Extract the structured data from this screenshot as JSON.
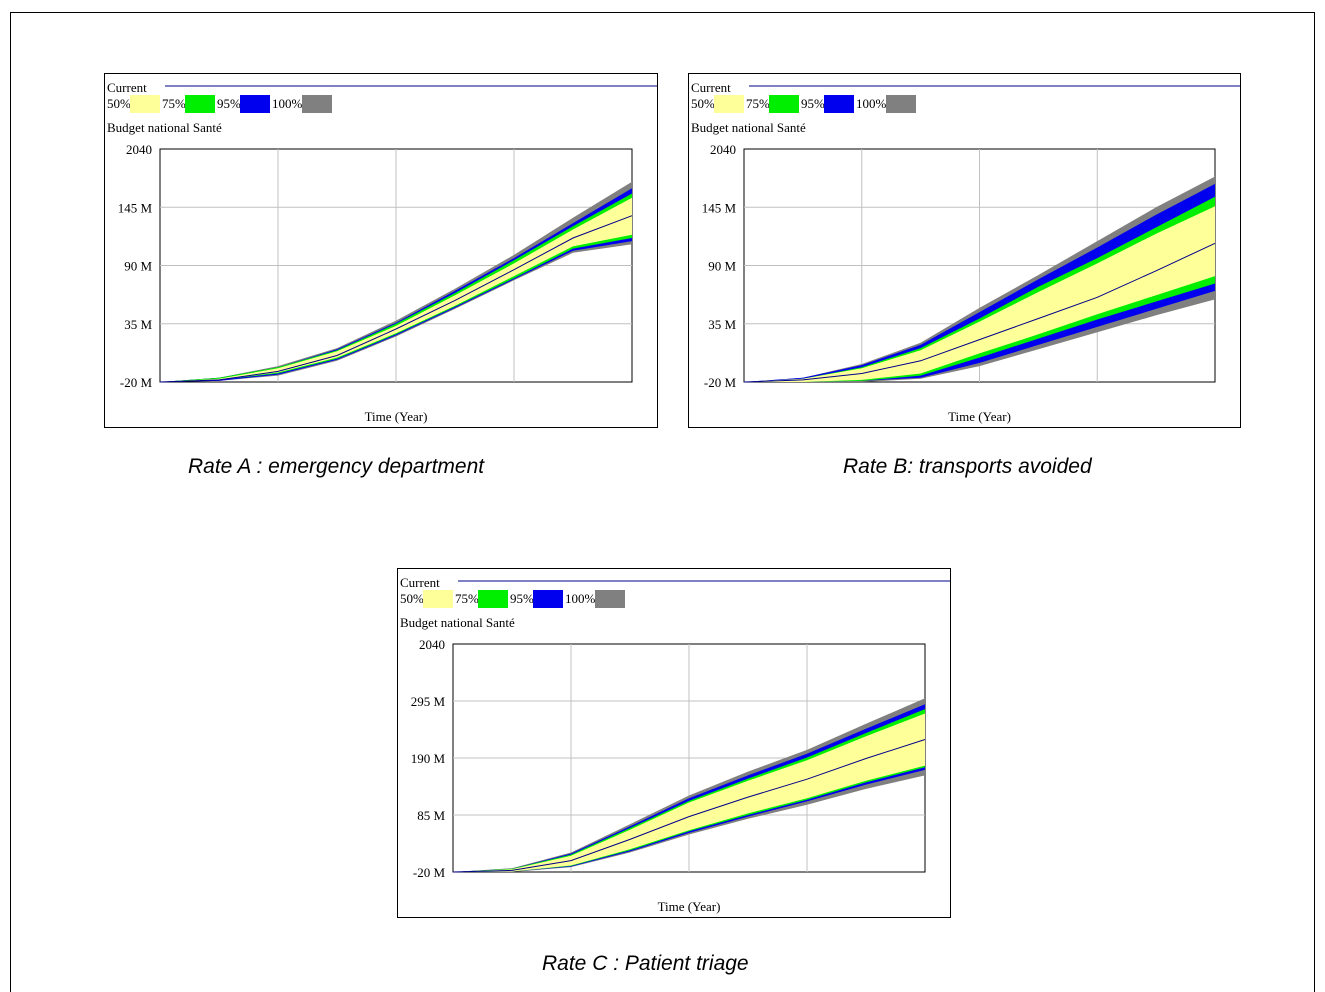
{
  "colors": {
    "band50": "#ffff99",
    "band75": "#00ee00",
    "band95": "#0000ee",
    "band100": "#808080",
    "current": "#00008b",
    "grid": "#c0c0c0"
  },
  "chart_data": [
    {
      "type": "area",
      "caption": "Rate A : emergency department",
      "current_label": "Current",
      "legend": [
        "50%",
        "75%",
        "95%",
        "100%"
      ],
      "variable": "Budget national Santé",
      "xlabel": "Time (Year)",
      "y_ticks": [
        "2040",
        "145 M",
        "90 M",
        "35 M",
        "-20 M"
      ],
      "ylim": [
        -20,
        200
      ],
      "x": [
        0,
        1,
        2,
        3,
        4,
        5,
        6,
        7,
        8
      ],
      "bands": {
        "b100_hi": [
          -20,
          -16,
          -5,
          12,
          38,
          68,
          100,
          135,
          169
        ],
        "b95_hi": [
          -20,
          -16,
          -6,
          11,
          36,
          66,
          97,
          130,
          163
        ],
        "b75_hi": [
          -20,
          -16,
          -6,
          10,
          35,
          64,
          95,
          127,
          158
        ],
        "b50_hi": [
          -20,
          -17,
          -7,
          9,
          33,
          62,
          92,
          124,
          154
        ],
        "b50_lo": [
          -20,
          -18,
          -11,
          3,
          26,
          52,
          80,
          108,
          119
        ],
        "b75_lo": [
          -20,
          -18,
          -12,
          2,
          25,
          51,
          78,
          106,
          116
        ],
        "b95_lo": [
          -20,
          -19,
          -13,
          1,
          24,
          50,
          77,
          104,
          113
        ],
        "b100_lo": [
          -20,
          -19,
          -14,
          0,
          23,
          49,
          76,
          102,
          110
        ],
        "current": [
          -20,
          -18,
          -10,
          5,
          30,
          57,
          86,
          116,
          137
        ]
      }
    },
    {
      "type": "area",
      "caption": "Rate B: transports avoided",
      "current_label": "Current",
      "legend": [
        "50%",
        "75%",
        "95%",
        "100%"
      ],
      "variable": "Budget national Santé",
      "xlabel": "Time (Year)",
      "y_ticks": [
        "2040",
        "145 M",
        "90 M",
        "35 M",
        "-20 M"
      ],
      "ylim": [
        -20,
        200
      ],
      "x": [
        0,
        1,
        2,
        3,
        4,
        5,
        6,
        7,
        8
      ],
      "bands": {
        "b100_hi": [
          -20,
          -16,
          -3,
          17,
          50,
          81,
          113,
          145,
          174
        ],
        "b95_hi": [
          -20,
          -16,
          -4,
          15,
          46,
          77,
          107,
          138,
          167
        ],
        "b75_hi": [
          -20,
          -17,
          -6,
          12,
          40,
          70,
          97,
          126,
          155
        ],
        "b50_hi": [
          -20,
          -17,
          -7,
          10,
          37,
          65,
          92,
          120,
          146
        ],
        "b50_lo": [
          -20,
          -20,
          -18,
          -12,
          7,
          25,
          44,
          62,
          80
        ],
        "b75_lo": [
          -20,
          -20,
          -19,
          -14,
          3,
          21,
          39,
          56,
          73
        ],
        "b95_lo": [
          -20,
          -20,
          -19,
          -16,
          -2,
          15,
          32,
          49,
          66
        ],
        "b100_lo": [
          -20,
          -20,
          -20,
          -17,
          -5,
          11,
          27,
          43,
          58
        ],
        "current": [
          -20,
          -18,
          -12,
          0,
          20,
          40,
          60,
          85,
          111
        ]
      }
    },
    {
      "type": "area",
      "caption": "Rate C : Patient triage",
      "current_label": "Current",
      "legend": [
        "50%",
        "75%",
        "95%",
        "100%"
      ],
      "variable": "Budget national Santé",
      "xlabel": "Time (Year)",
      "y_ticks": [
        "2040",
        "295 M",
        "190 M",
        "85 M",
        "-20 M"
      ],
      "ylim": [
        -20,
        400
      ],
      "x": [
        0,
        1,
        2,
        3,
        4,
        5,
        6,
        7,
        8
      ],
      "bands": {
        "b100_hi": [
          -20,
          -13,
          16,
          68,
          121,
          165,
          205,
          253,
          300
        ],
        "b95_hi": [
          -20,
          -14,
          14,
          64,
          116,
          158,
          198,
          244,
          289
        ],
        "b75_hi": [
          -20,
          -14,
          12,
          61,
          111,
          152,
          191,
          236,
          280
        ],
        "b50_hi": [
          -20,
          -15,
          10,
          58,
          108,
          148,
          186,
          230,
          272
        ],
        "b50_lo": [
          -20,
          -19,
          -8,
          22,
          57,
          88,
          116,
          148,
          176
        ],
        "b75_lo": [
          -20,
          -19,
          -9,
          20,
          55,
          85,
          113,
          145,
          173
        ],
        "b95_lo": [
          -20,
          -19,
          -10,
          18,
          52,
          82,
          110,
          141,
          168
        ],
        "b100_lo": [
          -20,
          -20,
          -11,
          16,
          49,
          78,
          104,
          133,
          158
        ],
        "current": [
          -20,
          -17,
          1,
          40,
          82,
          118,
          151,
          189,
          224
        ]
      }
    }
  ]
}
